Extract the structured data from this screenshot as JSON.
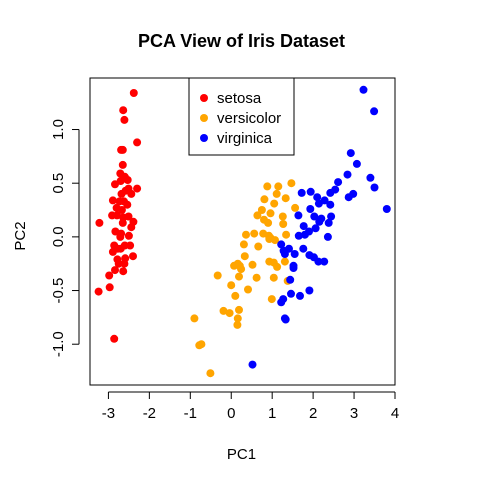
{
  "chart_data": {
    "type": "scatter",
    "title": "PCA View of Iris Dataset",
    "xlabel": "PC1",
    "ylabel": "PC2",
    "xlim": [
      -3.45,
      4.0
    ],
    "ylim": [
      -1.38,
      1.48
    ],
    "xticks": [
      -3,
      -2,
      -1,
      0,
      1,
      2,
      3,
      4
    ],
    "yticks": [
      -1.0,
      -0.5,
      0.0,
      0.5,
      1.0
    ],
    "ytick_labels": [
      "-1.0",
      "-0.5",
      "0.0",
      "0.5",
      "1.0"
    ],
    "legend_position": "top-center",
    "series": [
      {
        "name": "setosa",
        "color": "#FF0000",
        "points": [
          [
            -2.38,
            1.34
          ],
          [
            -2.64,
            1.18
          ],
          [
            -2.61,
            1.09
          ],
          [
            -2.65,
            0.81
          ],
          [
            -2.69,
            0.81
          ],
          [
            -2.3,
            0.88
          ],
          [
            -2.65,
            0.67
          ],
          [
            -2.71,
            0.59
          ],
          [
            -2.6,
            0.56
          ],
          [
            -2.53,
            0.53
          ],
          [
            -2.7,
            0.52
          ],
          [
            -2.84,
            0.49
          ],
          [
            -2.3,
            0.45
          ],
          [
            -2.51,
            0.45
          ],
          [
            -2.58,
            0.43
          ],
          [
            -2.44,
            0.4
          ],
          [
            -2.68,
            0.4
          ],
          [
            -2.89,
            0.34
          ],
          [
            -2.62,
            0.33
          ],
          [
            -2.73,
            0.33
          ],
          [
            -2.54,
            0.3
          ],
          [
            -2.8,
            0.27
          ],
          [
            -2.67,
            0.25
          ],
          [
            -2.64,
            0.18
          ],
          [
            -2.51,
            0.19
          ],
          [
            -2.91,
            0.2
          ],
          [
            -2.79,
            0.2
          ],
          [
            -2.39,
            0.14
          ],
          [
            -2.65,
            0.13
          ],
          [
            -2.44,
            0.09
          ],
          [
            -3.22,
            0.13
          ],
          [
            -2.83,
            0.05
          ],
          [
            -2.69,
            0.03
          ],
          [
            -2.71,
            0.0
          ],
          [
            -2.5,
            0.01
          ],
          [
            -2.86,
            -0.08
          ],
          [
            -2.6,
            -0.08
          ],
          [
            -2.47,
            -0.08
          ],
          [
            -2.7,
            -0.11
          ],
          [
            -2.77,
            -0.11
          ],
          [
            -2.89,
            -0.14
          ],
          [
            -2.4,
            -0.18
          ],
          [
            -2.78,
            -0.21
          ],
          [
            -2.59,
            -0.2
          ],
          [
            -2.61,
            -0.25
          ],
          [
            -2.75,
            -0.25
          ],
          [
            -2.84,
            -0.31
          ],
          [
            -2.64,
            -0.32
          ],
          [
            -2.98,
            -0.36
          ],
          [
            -3.24,
            -0.51
          ],
          [
            -2.97,
            -0.47
          ],
          [
            -2.86,
            -0.95
          ]
        ]
      },
      {
        "name": "versicolor",
        "color": "#FFA500",
        "points": [
          [
            0.88,
            0.47
          ],
          [
            1.15,
            0.47
          ],
          [
            1.47,
            0.5
          ],
          [
            1.11,
            0.4
          ],
          [
            1.33,
            0.36
          ],
          [
            1.56,
            0.27
          ],
          [
            1.05,
            0.31
          ],
          [
            0.81,
            0.35
          ],
          [
            0.8,
            0.16
          ],
          [
            0.96,
            0.22
          ],
          [
            0.75,
            0.25
          ],
          [
            1.26,
            0.19
          ],
          [
            0.64,
            0.2
          ],
          [
            0.9,
            0.13
          ],
          [
            1.27,
            0.12
          ],
          [
            0.78,
            0.03
          ],
          [
            0.56,
            0.03
          ],
          [
            0.36,
            0.02
          ],
          [
            0.92,
            0.01
          ],
          [
            0.96,
            -0.01
          ],
          [
            1.34,
            0.02
          ],
          [
            0.93,
            -0.02
          ],
          [
            1.07,
            -0.03
          ],
          [
            0.66,
            -0.09
          ],
          [
            0.31,
            -0.07
          ],
          [
            0.33,
            -0.18
          ],
          [
            0.16,
            -0.25
          ],
          [
            0.21,
            -0.27
          ],
          [
            0.07,
            -0.27
          ],
          [
            0.24,
            -0.3
          ],
          [
            0.52,
            -0.26
          ],
          [
            0.93,
            -0.23
          ],
          [
            1.04,
            -0.24
          ],
          [
            1.31,
            -0.23
          ],
          [
            1.12,
            -0.28
          ],
          [
            -0.33,
            -0.36
          ],
          [
            0.19,
            -0.37
          ],
          [
            0.62,
            -0.38
          ],
          [
            1.04,
            -0.38
          ],
          [
            1.38,
            -0.41
          ],
          [
            0.0,
            -0.45
          ],
          [
            0.41,
            -0.49
          ],
          [
            0.1,
            -0.55
          ],
          [
            0.99,
            -0.58
          ],
          [
            0.19,
            -0.68
          ],
          [
            -0.19,
            -0.69
          ],
          [
            -0.04,
            -0.71
          ],
          [
            0.16,
            -0.76
          ],
          [
            0.15,
            -0.82
          ],
          [
            -0.9,
            -0.76
          ],
          [
            -0.73,
            -1.0
          ],
          [
            -0.78,
            -1.01
          ],
          [
            -0.51,
            -1.27
          ]
        ]
      },
      {
        "name": "virginica",
        "color": "#0000FF",
        "points": [
          [
            3.23,
            1.37
          ],
          [
            3.49,
            1.17
          ],
          [
            2.92,
            0.78
          ],
          [
            3.07,
            0.68
          ],
          [
            3.4,
            0.55
          ],
          [
            2.84,
            0.58
          ],
          [
            3.5,
            0.46
          ],
          [
            2.61,
            0.51
          ],
          [
            2.42,
            0.41
          ],
          [
            2.54,
            0.44
          ],
          [
            3.8,
            0.26
          ],
          [
            2.98,
            0.4
          ],
          [
            2.87,
            0.37
          ],
          [
            1.94,
            0.42
          ],
          [
            2.28,
            0.34
          ],
          [
            2.14,
            0.31
          ],
          [
            2.42,
            0.3
          ],
          [
            2.1,
            0.37
          ],
          [
            1.72,
            0.41
          ],
          [
            1.93,
            0.26
          ],
          [
            2.03,
            0.19
          ],
          [
            2.44,
            0.19
          ],
          [
            1.64,
            0.2
          ],
          [
            2.2,
            0.17
          ],
          [
            2.38,
            0.13
          ],
          [
            2.36,
            0.0
          ],
          [
            2.15,
            0.14
          ],
          [
            1.77,
            0.1
          ],
          [
            1.9,
            0.05
          ],
          [
            1.8,
            0.02
          ],
          [
            1.65,
            0.01
          ],
          [
            2.06,
            0.08
          ],
          [
            1.76,
            -0.11
          ],
          [
            1.41,
            -0.11
          ],
          [
            1.22,
            -0.07
          ],
          [
            1.55,
            -0.16
          ],
          [
            1.31,
            -0.16
          ],
          [
            1.28,
            -0.13
          ],
          [
            1.91,
            -0.17
          ],
          [
            2.02,
            -0.19
          ],
          [
            2.27,
            -0.23
          ],
          [
            1.52,
            -0.29
          ],
          [
            2.13,
            -0.23
          ],
          [
            1.52,
            -0.27
          ],
          [
            1.44,
            -0.4
          ],
          [
            1.91,
            -0.5
          ],
          [
            1.68,
            -0.55
          ],
          [
            1.46,
            -0.53
          ],
          [
            1.27,
            -0.58
          ],
          [
            1.22,
            -0.61
          ],
          [
            1.31,
            -0.76
          ],
          [
            1.33,
            -0.77
          ],
          [
            0.52,
            -1.19
          ]
        ]
      }
    ]
  }
}
